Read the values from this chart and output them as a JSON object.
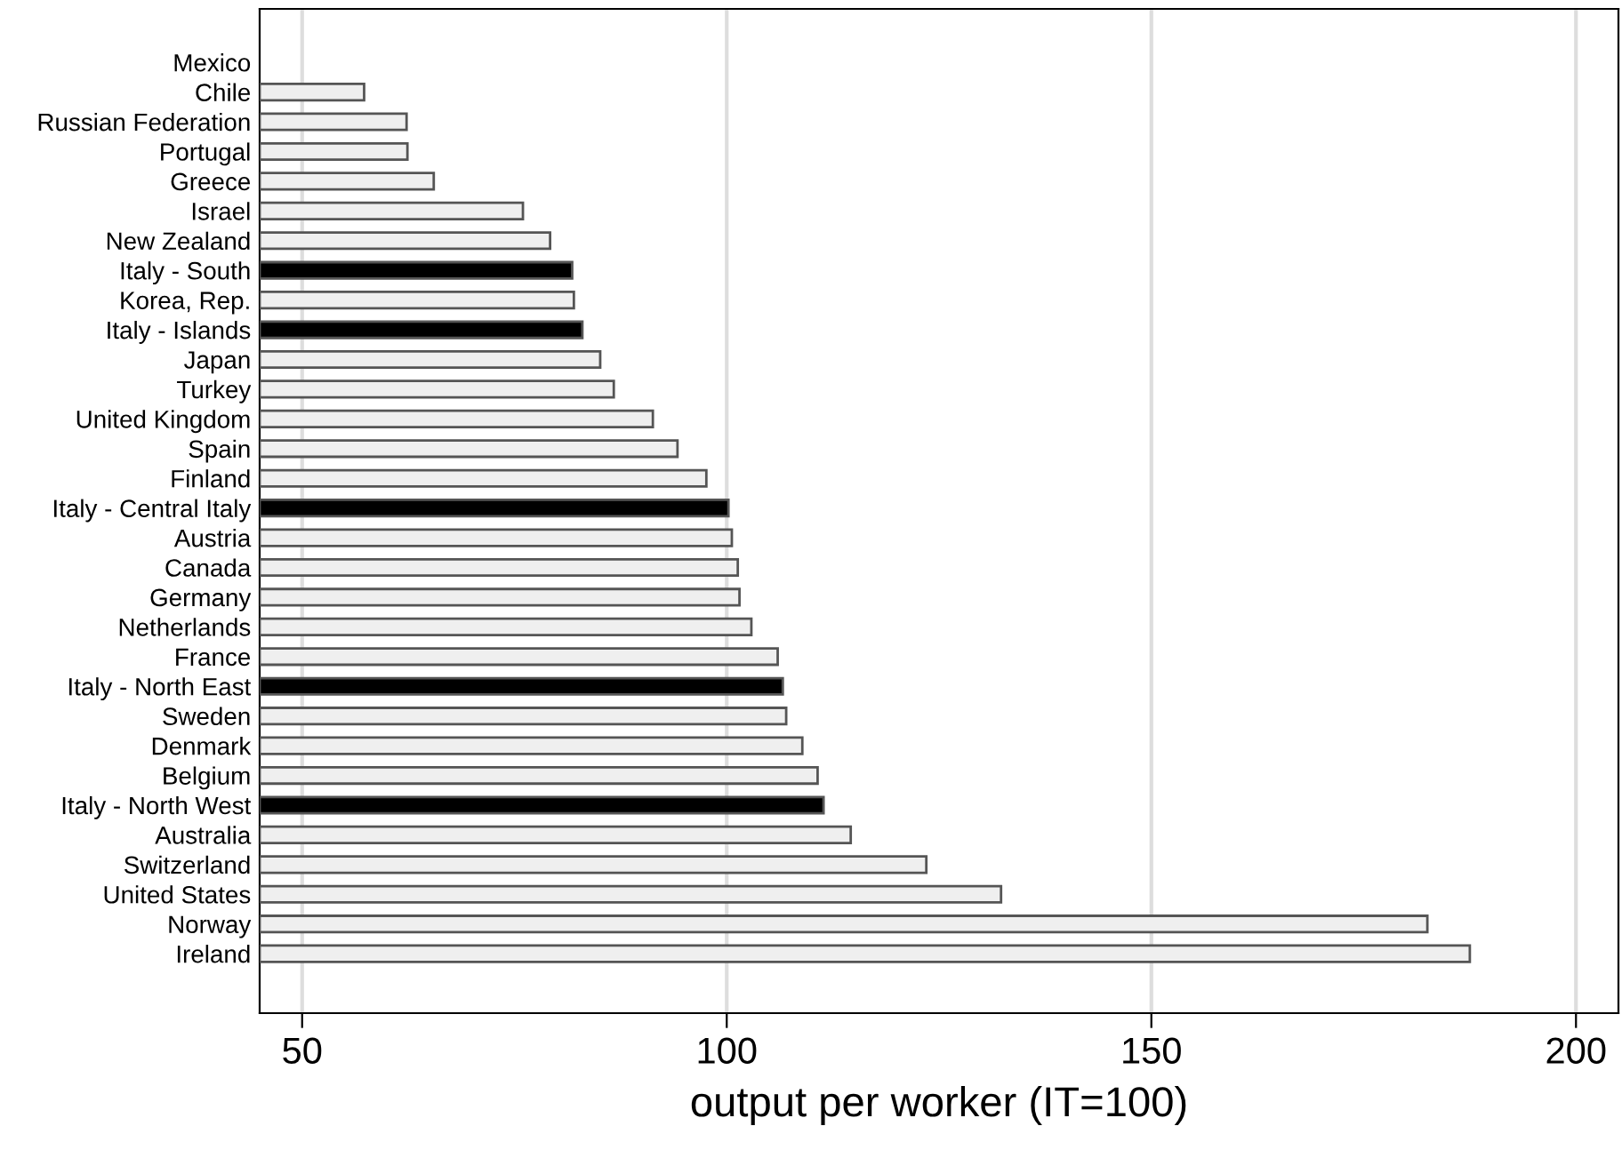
{
  "chart_data": {
    "type": "bar",
    "orientation": "horizontal",
    "xlabel": "output per worker (IT=100)",
    "categories": [
      "Mexico",
      "Chile",
      "Russian Federation",
      "Portugal",
      "Greece",
      "Israel",
      "New Zealand",
      "Italy - South",
      "Korea, Rep.",
      "Italy - Islands",
      "Japan",
      "Turkey",
      "United Kingdom",
      "Spain",
      "Finland",
      "Italy - Central Italy",
      "Austria",
      "Canada",
      "Germany",
      "Netherlands",
      "France",
      "Italy - North East",
      "Sweden",
      "Denmark",
      "Belgium",
      "Italy - North West",
      "Australia",
      "Switzerland",
      "United States",
      "Norway",
      "Ireland"
    ],
    "values": [
      null,
      57.3,
      62.3,
      62.4,
      65.5,
      76.0,
      79.2,
      81.8,
      82.0,
      83.0,
      85.1,
      86.7,
      91.3,
      94.2,
      97.6,
      100.2,
      100.6,
      101.3,
      101.5,
      102.9,
      106.0,
      106.6,
      107.0,
      108.9,
      110.7,
      111.4,
      114.6,
      123.5,
      132.3,
      182.5,
      187.5
    ],
    "colors": [
      "#efefef",
      "#efefef",
      "#efefef",
      "#efefef",
      "#efefef",
      "#efefef",
      "#efefef",
      "#000000",
      "#efefef",
      "#000000",
      "#efefef",
      "#efefef",
      "#efefef",
      "#efefef",
      "#efefef",
      "#000000",
      "#efefef",
      "#efefef",
      "#efefef",
      "#efefef",
      "#efefef",
      "#000000",
      "#efefef",
      "#efefef",
      "#efefef",
      "#000000",
      "#efefef",
      "#efefef",
      "#efefef",
      "#efefef",
      "#efefef"
    ],
    "xlim": [
      45,
      205
    ],
    "xticks": [
      50,
      100,
      150,
      200
    ],
    "grid": "x",
    "legend": false
  }
}
